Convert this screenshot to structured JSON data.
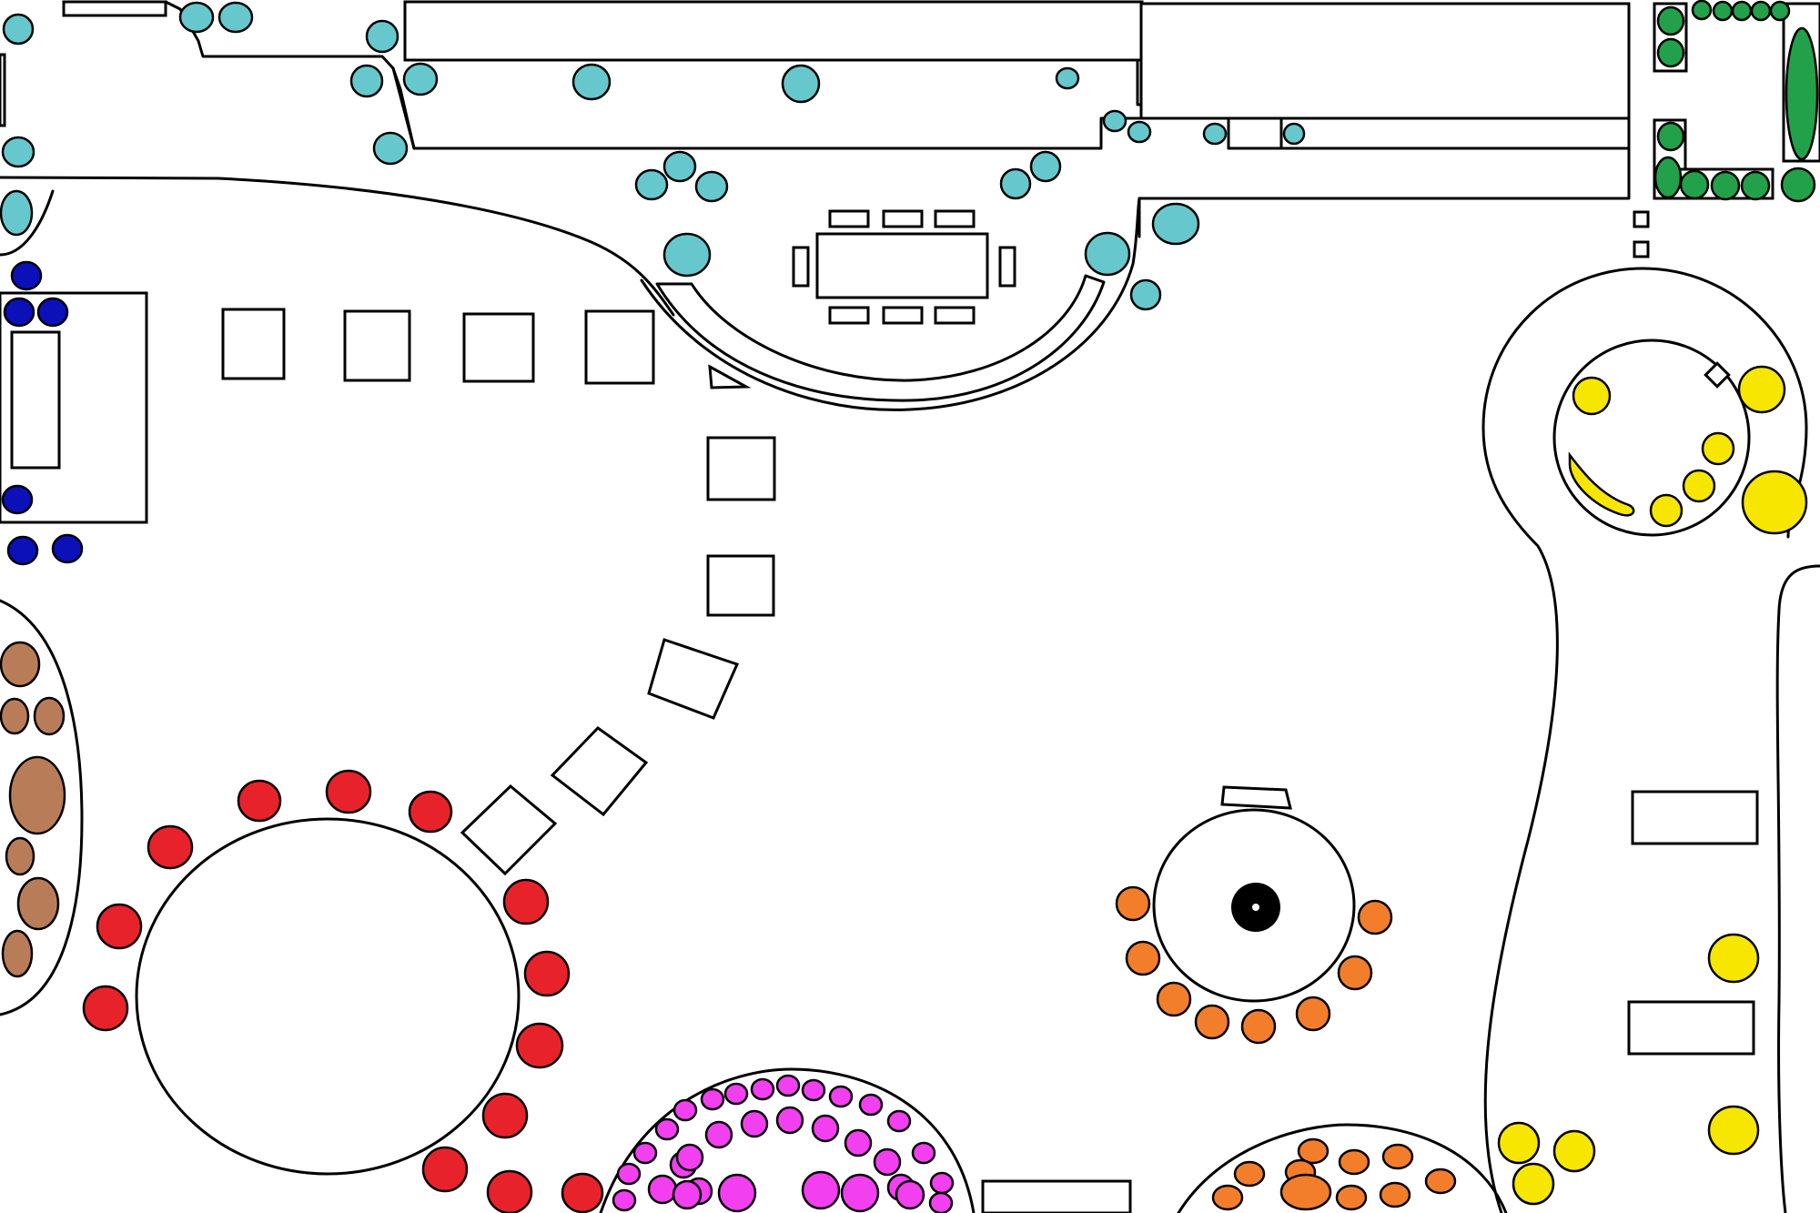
{
  "colors": {
    "background": "#ffffff",
    "outline": "#000000",
    "teal": "#66c8cc",
    "navy": "#0b10b8",
    "green": "#22a04a",
    "yellow": "#f7e600",
    "brown": "#b87d58",
    "red": "#e8222a",
    "orange": "#f27e2c",
    "magenta": "#f23ff0",
    "black": "#000000"
  },
  "plant_groups": [
    {
      "name": "teal-shrubs",
      "color": "teal",
      "items": [
        [
          20,
          32,
          16,
          16
        ],
        [
          216,
          19,
          18,
          16
        ],
        [
          259,
          19,
          18,
          16
        ],
        [
          420,
          40,
          17,
          17
        ],
        [
          403,
          89,
          17,
          17
        ],
        [
          462,
          87,
          18,
          17
        ],
        [
          650,
          90,
          20,
          19
        ],
        [
          880,
          92,
          20,
          20
        ],
        [
          429,
          163,
          18,
          17
        ],
        [
          747,
          183,
          17,
          16
        ],
        [
          716,
          203,
          17,
          16
        ],
        [
          782,
          205,
          17,
          16
        ],
        [
          1173,
          86,
          12,
          11
        ],
        [
          1225,
          133,
          12,
          11
        ],
        [
          1252,
          145,
          12,
          11
        ],
        [
          1335,
          147,
          12,
          11
        ],
        [
          1422,
          147,
          11,
          11
        ],
        [
          20,
          167,
          17,
          16
        ],
        [
          1116,
          202,
          16,
          16
        ],
        [
          1149,
          183,
          16,
          16
        ],
        [
          1292,
          246,
          25,
          22
        ],
        [
          1259,
          324,
          16,
          16
        ],
        [
          755,
          280,
          25,
          23
        ],
        [
          1217,
          279,
          24,
          23
        ],
        [
          18,
          234,
          17,
          24
        ]
      ]
    },
    {
      "name": "navy-shrubs",
      "color": "navy",
      "items": [
        [
          29,
          303,
          16,
          15
        ],
        [
          21,
          343,
          16,
          15
        ],
        [
          58,
          343,
          16,
          15
        ],
        [
          19,
          549,
          16,
          15
        ],
        [
          25,
          605,
          16,
          15
        ],
        [
          74,
          603,
          16,
          15
        ]
      ]
    },
    {
      "name": "green-shrubs",
      "color": "green",
      "items": [
        [
          1836,
          23,
          14,
          15
        ],
        [
          1836,
          58,
          14,
          15
        ],
        [
          1870,
          11,
          10,
          10
        ],
        [
          1893,
          12,
          10,
          10
        ],
        [
          1914,
          12,
          10,
          10
        ],
        [
          1935,
          12,
          10,
          10
        ],
        [
          1956,
          12,
          10,
          10
        ],
        [
          1980,
          103,
          17,
          72
        ],
        [
          1836,
          150,
          14,
          15
        ],
        [
          1833,
          195,
          14,
          22
        ],
        [
          1862,
          203,
          15,
          15
        ],
        [
          1896,
          204,
          15,
          15
        ],
        [
          1929,
          204,
          15,
          15
        ],
        [
          1976,
          203,
          18,
          18
        ]
      ]
    },
    {
      "name": "yellow-shrubs",
      "color": "yellow",
      "items": [
        [
          1936,
          428,
          25,
          25
        ],
        [
          1950,
          552,
          35,
          34
        ],
        [
          1749,
          435,
          20,
          20
        ],
        [
          1888,
          493,
          17,
          17
        ],
        [
          1867,
          534,
          17,
          17
        ],
        [
          1831,
          561,
          17,
          17
        ],
        [
          1905,
          1053,
          27,
          26
        ],
        [
          1905,
          1242,
          27,
          26
        ],
        [
          1669,
          1256,
          22,
          22
        ],
        [
          1730,
          1265,
          22,
          22
        ],
        [
          1685,
          1301,
          22,
          22
        ]
      ]
    },
    {
      "name": "brown-shrubs",
      "color": "brown",
      "items": [
        [
          22,
          730,
          21,
          24
        ],
        [
          16,
          787,
          15,
          19
        ],
        [
          54,
          787,
          16,
          20
        ],
        [
          41,
          874,
          30,
          42
        ],
        [
          22,
          941,
          15,
          20
        ],
        [
          42,
          993,
          22,
          28
        ],
        [
          19,
          1048,
          16,
          25
        ]
      ]
    },
    {
      "name": "red-shrubs",
      "color": "red",
      "items": [
        [
          285,
          880,
          23,
          22
        ],
        [
          383,
          870,
          24,
          23
        ],
        [
          473,
          892,
          23,
          22
        ],
        [
          187,
          931,
          24,
          23
        ],
        [
          131,
          1018,
          24,
          24
        ],
        [
          116,
          1108,
          24,
          24
        ],
        [
          578,
          991,
          24,
          24
        ],
        [
          601,
          1070,
          24,
          24
        ],
        [
          593,
          1149,
          25,
          24
        ],
        [
          555,
          1226,
          24,
          24
        ],
        [
          489,
          1285,
          24,
          24
        ],
        [
          560,
          1310,
          24,
          23
        ],
        [
          640,
          1311,
          22,
          21
        ]
      ]
    },
    {
      "name": "orange-shrubs",
      "color": "orange",
      "items": [
        [
          1245,
          993,
          18,
          18
        ],
        [
          1511,
          1008,
          18,
          18
        ],
        [
          1256,
          1053,
          18,
          18
        ],
        [
          1489,
          1069,
          18,
          18
        ],
        [
          1290,
          1098,
          18,
          18
        ],
        [
          1443,
          1114,
          18,
          18
        ],
        [
          1332,
          1123,
          18,
          18
        ],
        [
          1383,
          1128,
          18,
          18
        ],
        [
          1443,
          1265,
          16,
          13
        ],
        [
          1488,
          1277,
          16,
          13
        ],
        [
          1536,
          1271,
          16,
          13
        ],
        [
          1373,
          1290,
          16,
          13
        ],
        [
          1429,
          1288,
          16,
          13
        ],
        [
          1485,
          1316,
          16,
          13
        ],
        [
          1533,
          1313,
          16,
          13
        ],
        [
          1583,
          1298,
          16,
          13
        ],
        [
          1349,
          1316,
          16,
          13
        ],
        [
          1435,
          1310,
          27,
          19
        ]
      ]
    },
    {
      "name": "magenta-shrubs",
      "color": "magenta",
      "items": [
        [
          783,
          1208,
          12,
          11
        ],
        [
          809,
          1202,
          12,
          11
        ],
        [
          838,
          1197,
          12,
          11
        ],
        [
          866,
          1193,
          12,
          11
        ],
        [
          894,
          1198,
          12,
          11
        ],
        [
          924,
          1205,
          12,
          11
        ],
        [
          957,
          1214,
          12,
          11
        ],
        [
          988,
          1232,
          12,
          11
        ],
        [
          1015,
          1267,
          12,
          11
        ],
        [
          1035,
          1300,
          12,
          11
        ],
        [
          753,
          1220,
          12,
          11
        ],
        [
          733,
          1241,
          12,
          11
        ],
        [
          709,
          1267,
          12,
          11
        ],
        [
          691,
          1290,
          12,
          11
        ],
        [
          686,
          1319,
          12,
          11
        ],
        [
          751,
          1280,
          14,
          14
        ],
        [
          790,
          1247,
          14,
          14
        ],
        [
          829,
          1235,
          14,
          14
        ],
        [
          868,
          1231,
          14,
          14
        ],
        [
          907,
          1240,
          14,
          14
        ],
        [
          943,
          1256,
          14,
          14
        ],
        [
          975,
          1277,
          14,
          14
        ],
        [
          758,
          1272,
          14,
          14
        ],
        [
          990,
          1305,
          14,
          14
        ],
        [
          728,
          1307,
          15,
          15
        ],
        [
          768,
          1309,
          14,
          14
        ],
        [
          810,
          1311,
          20,
          20
        ],
        [
          755,
          1313,
          15,
          15
        ],
        [
          902,
          1308,
          20,
          20
        ],
        [
          945,
          1311,
          20,
          20
        ],
        [
          1000,
          1313,
          15,
          15
        ],
        [
          1034,
          1322,
          12,
          11
        ]
      ]
    }
  ]
}
